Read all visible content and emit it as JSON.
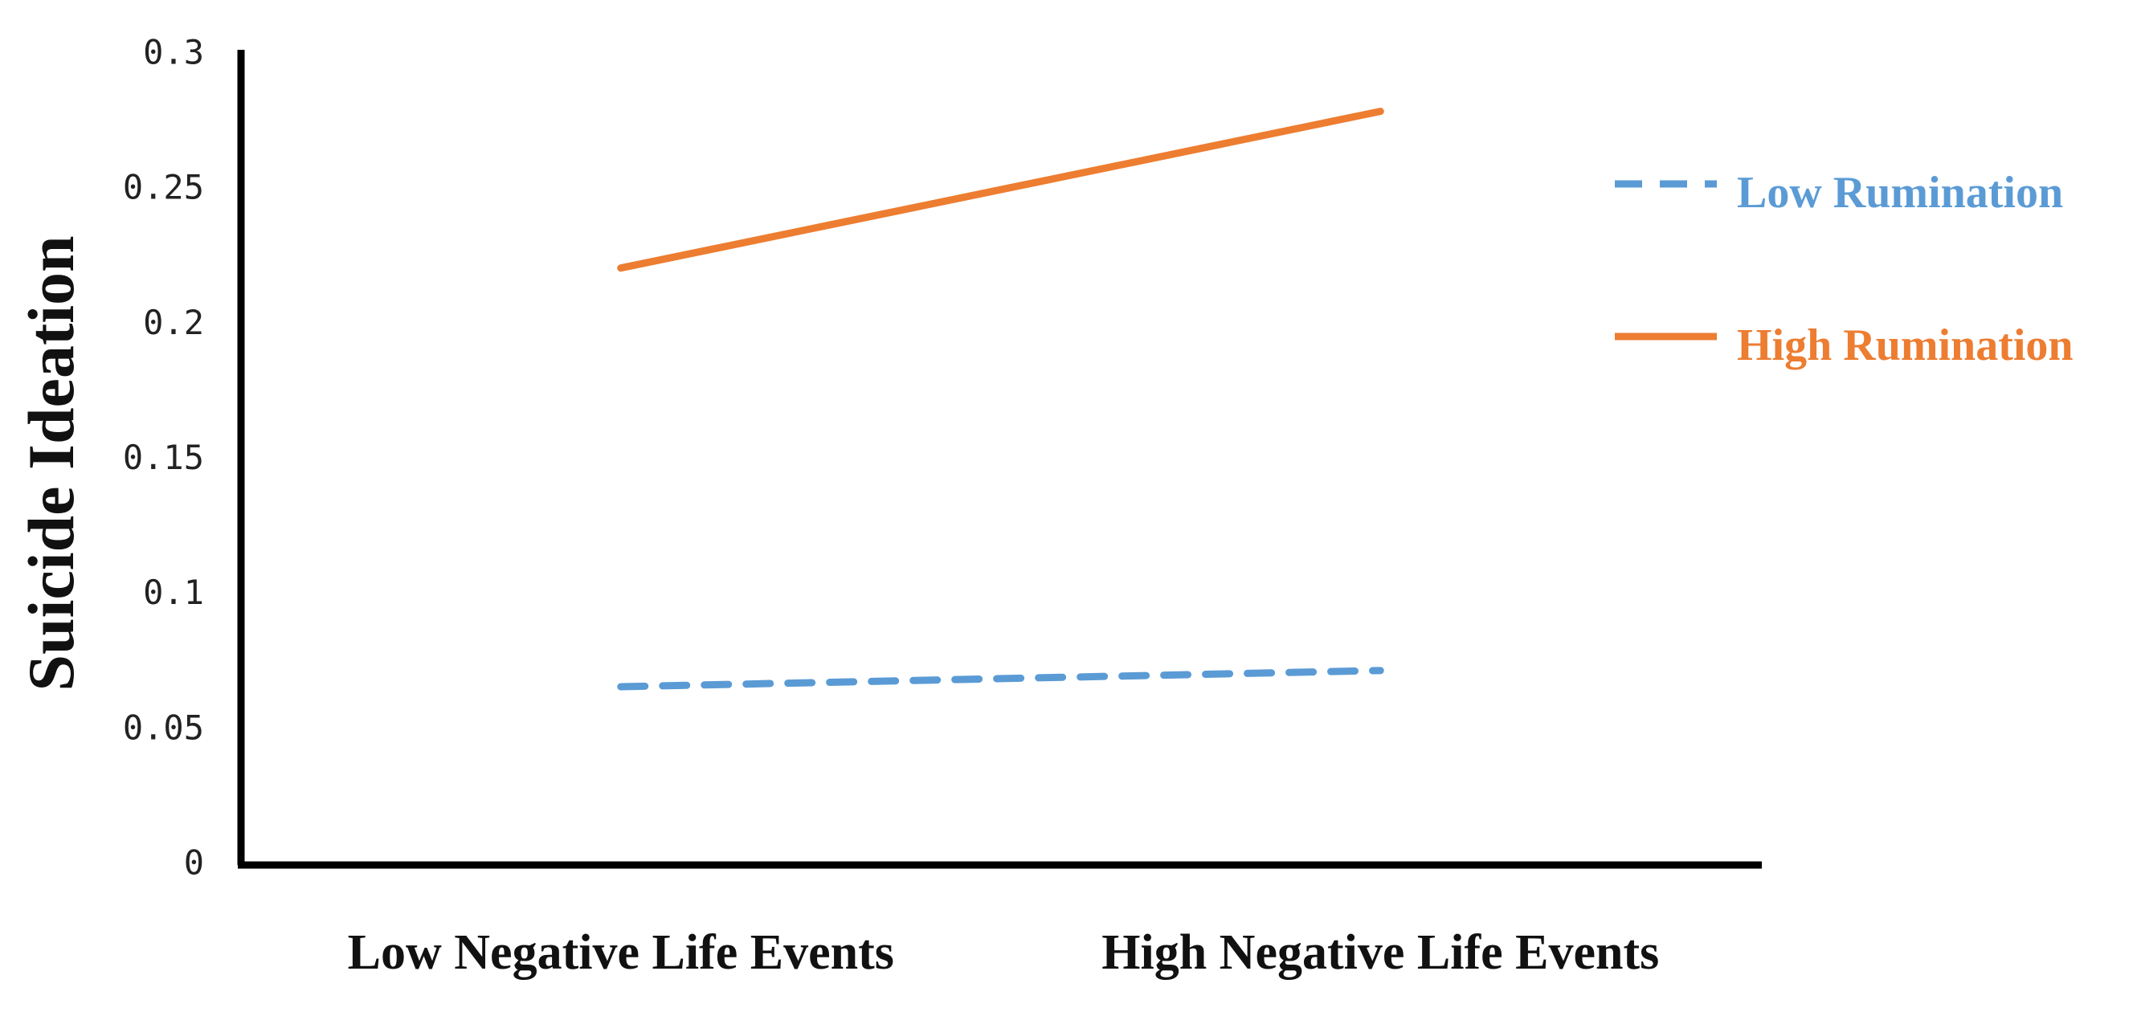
{
  "chart_data": {
    "type": "line",
    "y_label": "Suicide Ideation",
    "categories": [
      "Low Negative Life Events",
      "High Negative Life Events"
    ],
    "series": [
      {
        "name": "Low Rumination",
        "color": "#5b9bd5",
        "dashed": true,
        "values": [
          0.066,
          0.072
        ]
      },
      {
        "name": "High Rumination",
        "color": "#ed7d31",
        "dashed": false,
        "values": [
          0.221,
          0.279
        ]
      }
    ],
    "ylim": [
      0,
      0.3
    ],
    "yticks": [
      0,
      0.05,
      0.1,
      0.15,
      0.2,
      0.25,
      0.3
    ],
    "grid": false,
    "legend": "right"
  }
}
